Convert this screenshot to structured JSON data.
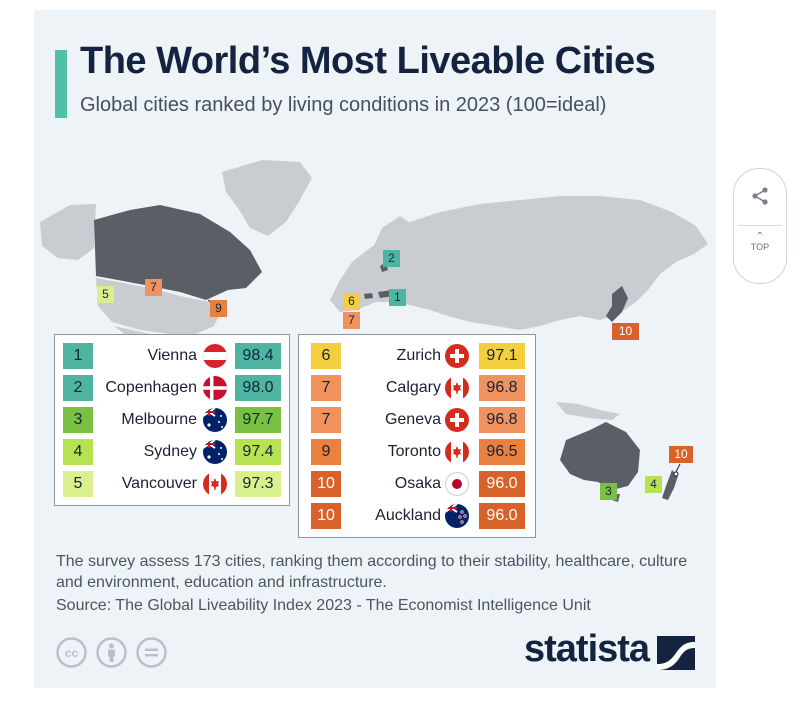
{
  "title": "The World’s Most Liveable Cities",
  "subtitle": "Global cities ranked by living conditions in 2023 (100=ideal)",
  "note": "The survey assess 173 cities, ranking them according to their stability, healthcare, culture and environment, education and infrastructure.",
  "source": "Source: The Global Liveability Index 2023 - The Economist Intelligence Unit",
  "brand": "statista",
  "share_widget": {
    "icon": "share-icon",
    "top_label": "TOP"
  },
  "license_icons": [
    "creative-commons-icon",
    "attribution-icon",
    "no-derivatives-icon"
  ],
  "colors": {
    "rank_1_2": "#4fb5a0",
    "rank_3": "#7ac143",
    "rank_4": "#b5e352",
    "rank_5": "#d9f08c",
    "rank_6": "#f3cf3d",
    "rank_7": "#f0925d",
    "rank_9": "#e9803e",
    "rank_10": "#d9622b"
  },
  "chart_data": {
    "type": "table",
    "columns": [
      "rank",
      "city",
      "country_flag",
      "score"
    ],
    "rows": [
      {
        "rank": "1",
        "city": "Vienna",
        "flag": "austria",
        "score": "98.4"
      },
      {
        "rank": "2",
        "city": "Copenhagen",
        "flag": "denmark",
        "score": "98.0"
      },
      {
        "rank": "3",
        "city": "Melbourne",
        "flag": "australia",
        "score": "97.7"
      },
      {
        "rank": "4",
        "city": "Sydney",
        "flag": "australia",
        "score": "97.4"
      },
      {
        "rank": "5",
        "city": "Vancouver",
        "flag": "canada",
        "score": "97.3"
      },
      {
        "rank": "6",
        "city": "Zurich",
        "flag": "switzerland",
        "score": "97.1"
      },
      {
        "rank": "7",
        "city": "Calgary",
        "flag": "canada",
        "score": "96.8"
      },
      {
        "rank": "7",
        "city": "Geneva",
        "flag": "switzerland",
        "score": "96.8"
      },
      {
        "rank": "9",
        "city": "Toronto",
        "flag": "canada",
        "score": "96.5"
      },
      {
        "rank": "10",
        "city": "Osaka",
        "flag": "japan",
        "score": "96.0"
      },
      {
        "rank": "10",
        "city": "Auckland",
        "flag": "new-zealand",
        "score": "96.0"
      }
    ],
    "map_markers": [
      {
        "label": "1",
        "city": "Vienna"
      },
      {
        "label": "2",
        "city": "Copenhagen"
      },
      {
        "label": "3",
        "city": "Melbourne"
      },
      {
        "label": "4",
        "city": "Sydney"
      },
      {
        "label": "5",
        "city": "Vancouver"
      },
      {
        "label": "6",
        "city": "Zurich"
      },
      {
        "label": "7",
        "city": "Calgary"
      },
      {
        "label": "7",
        "city": "Geneva"
      },
      {
        "label": "9",
        "city": "Toronto"
      },
      {
        "label": "10",
        "city": "Osaka"
      },
      {
        "label": "10",
        "city": "Auckland"
      }
    ],
    "highlighted_countries": [
      "canada",
      "austria",
      "denmark",
      "switzerland",
      "japan",
      "australia",
      "new-zealand"
    ]
  }
}
